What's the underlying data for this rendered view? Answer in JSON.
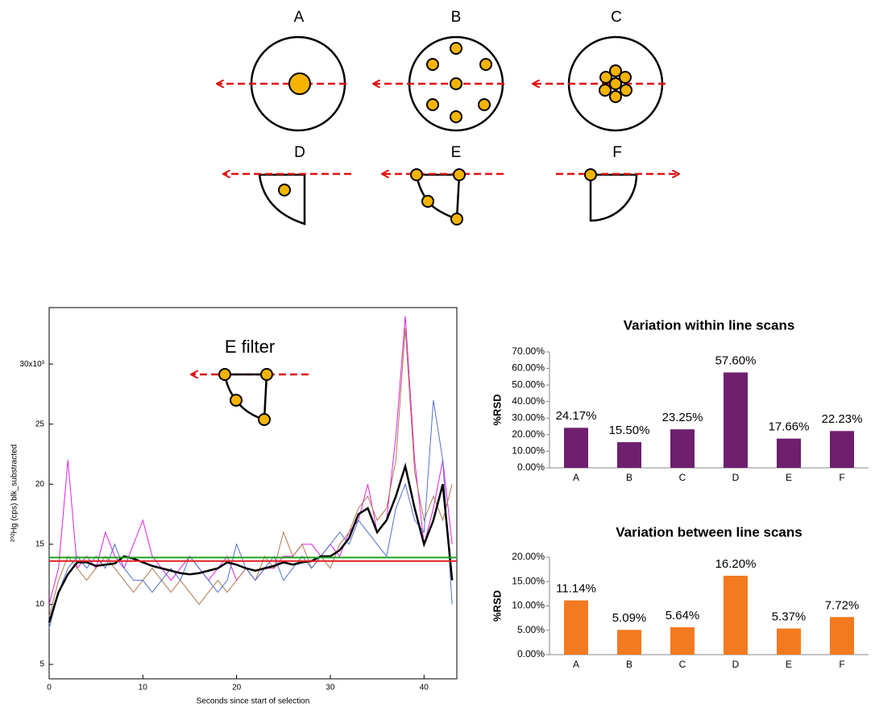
{
  "diagram": {
    "labels": [
      "A",
      "B",
      "C",
      "D",
      "E",
      "F"
    ]
  },
  "chart_data": [
    {
      "type": "line",
      "annotation": "E filter",
      "ylabel": "²⁰²Hg (cps) blk_substracted",
      "xlabel": "Seconds since start of selection",
      "x": [
        0,
        1,
        2,
        3,
        4,
        5,
        6,
        7,
        8,
        9,
        10,
        11,
        12,
        13,
        14,
        15,
        16,
        17,
        18,
        19,
        20,
        21,
        22,
        23,
        24,
        25,
        26,
        27,
        28,
        29,
        30,
        31,
        32,
        33,
        34,
        35,
        36,
        37,
        38,
        39,
        40,
        41,
        42,
        43
      ],
      "series": [
        {
          "color": "#e020e0",
          "values": [
            10,
            13,
            22,
            13,
            14,
            13,
            16,
            14,
            13,
            15,
            17,
            14,
            13,
            12,
            13,
            14,
            13,
            12,
            13,
            14,
            12,
            13,
            12,
            13,
            13,
            14,
            14,
            15,
            15,
            14,
            15,
            14,
            16,
            17,
            20,
            16,
            17,
            24,
            34,
            22,
            15,
            18,
            22,
            15
          ]
        },
        {
          "color": "#b07850",
          "values": [
            9,
            12,
            14,
            13,
            12,
            13,
            14,
            13,
            12,
            11,
            12,
            13,
            12,
            11,
            12,
            11,
            10,
            11,
            12,
            11,
            12,
            13,
            12,
            14,
            13,
            16,
            14,
            15,
            13,
            14,
            13,
            15,
            16,
            18,
            19,
            17,
            18,
            22,
            33,
            21,
            17,
            19,
            17,
            20
          ]
        },
        {
          "color": "#5070d0",
          "values": [
            8,
            11,
            13,
            14,
            13,
            14,
            13,
            15,
            13,
            12,
            12,
            11,
            12,
            13,
            12,
            14,
            13,
            12,
            11,
            12,
            15,
            13,
            12,
            13,
            14,
            12,
            13,
            14,
            13,
            14,
            15,
            16,
            15,
            17,
            16,
            15,
            14,
            18,
            20,
            17,
            16,
            27,
            22,
            10
          ]
        },
        {
          "color": "#000000",
          "values": [
            8.5,
            11,
            12.5,
            13.5,
            13.5,
            13.2,
            13.3,
            13.4,
            14,
            13.8,
            13.5,
            13.2,
            13,
            12.8,
            12.6,
            12.5,
            12.6,
            12.8,
            13,
            13.5,
            13.3,
            13,
            12.8,
            13,
            13.2,
            13.5,
            13.3,
            13.5,
            13.6,
            14,
            14,
            14.5,
            15.5,
            17.5,
            18,
            16,
            17,
            19,
            21.5,
            18,
            15,
            17,
            20,
            12
          ]
        }
      ],
      "hlines": [
        {
          "value": 13.6,
          "color": "#e02020"
        },
        {
          "value": 13.9,
          "color": "#20a020"
        }
      ],
      "xlim": [
        0,
        43.5
      ],
      "xticks": [
        0,
        10,
        20,
        30,
        40
      ],
      "ylim": [
        3.8,
        34.7
      ],
      "yticks": [
        5,
        10,
        15,
        20,
        25,
        {
          "value": 30,
          "label": "30x10³"
        }
      ]
    },
    {
      "type": "bar",
      "title": "Variation within line scans",
      "ylabel": "%RSD",
      "color": "#6e1f6e",
      "categories": [
        "A",
        "B",
        "C",
        "D",
        "E",
        "F"
      ],
      "values": [
        24.17,
        15.5,
        23.25,
        57.6,
        17.66,
        22.23
      ],
      "value_labels": [
        "24.17%",
        "15.50%",
        "23.25%",
        "57.60%",
        "17.66%",
        "22.23%"
      ],
      "ylim": [
        0,
        70
      ],
      "yticks": [
        {
          "value": 0,
          "label": "0.00%"
        },
        {
          "value": 10,
          "label": "10.00%"
        },
        {
          "value": 20,
          "label": "20.00%"
        },
        {
          "value": 30,
          "label": "30.00%"
        },
        {
          "value": 40,
          "label": "40.00%"
        },
        {
          "value": 50,
          "label": "50.00%"
        },
        {
          "value": 60,
          "label": "60.00%"
        },
        {
          "value": 70,
          "label": "70.00%"
        }
      ]
    },
    {
      "type": "bar",
      "title": "Variation between line scans",
      "ylabel": "%RSD",
      "color": "#f47a20",
      "categories": [
        "A",
        "B",
        "C",
        "D",
        "E",
        "F"
      ],
      "values": [
        11.14,
        5.09,
        5.64,
        16.2,
        5.37,
        7.72
      ],
      "value_labels": [
        "11.14%",
        "5.09%",
        "5.64%",
        "16.20%",
        "5.37%",
        "7.72%"
      ],
      "ylim": [
        0,
        20
      ],
      "yticks": [
        {
          "value": 0,
          "label": "0.00%"
        },
        {
          "value": 5,
          "label": "5.00%"
        },
        {
          "value": 10,
          "label": "10.00%"
        },
        {
          "value": 15,
          "label": "15.00%"
        },
        {
          "value": 20,
          "label": "20.00%"
        }
      ]
    }
  ]
}
